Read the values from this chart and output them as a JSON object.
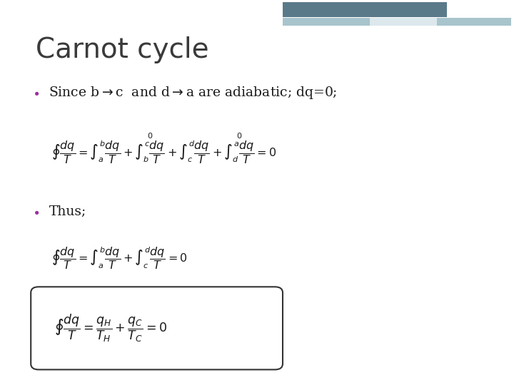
{
  "title": "Carnot cycle",
  "title_fontsize": 28,
  "title_color": "#3a3a3a",
  "bg_color": "#ffffff",
  "header_bar_color1": "#5a7a8a",
  "header_bar_color2": "#a8c4cc",
  "header_bar_color3": "#dce8ec",
  "bullet_color": "#9b30a0",
  "text_color": "#1a1a1a",
  "box_color": "#333333",
  "line1_text": "Since b→c  and d→a are adiabatic; dq=0;",
  "line2_text": "Thus;",
  "eq1": "\\oint \\dfrac{dq}{T} = \\int_{a}^{b}\\dfrac{dq}{T} + \\overset{0}{\\int_{b}^{c}\\dfrac{dq}{T}} + \\int_{c}^{d}\\dfrac{dq}{T} + \\overset{0}{\\int_{d}^{a}\\dfrac{dq}{T}} = 0",
  "eq2": "\\oint \\dfrac{dq}{T} = \\int_{a}^{b}\\dfrac{dq}{T} + \\int_{c}^{d}\\dfrac{dq}{T} = 0",
  "eq3": "\\oint \\dfrac{dq}{T} = \\dfrac{q_H}{T_H} + \\dfrac{q_C}{T_C} = 0"
}
